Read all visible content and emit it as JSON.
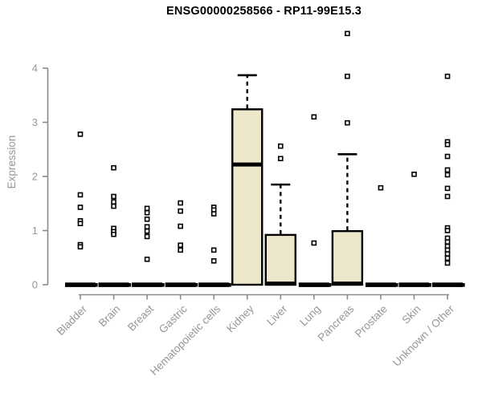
{
  "title": "ENSG00000258566 - RP11-99E15.3",
  "chart_data": {
    "type": "boxplot",
    "title": "ENSG00000258566 - RP11-99E15.3",
    "xlabel": "",
    "ylabel": "Expression",
    "yticks": [
      0,
      1,
      2,
      3,
      4
    ],
    "ylim": [
      0,
      4.75
    ],
    "grid": false,
    "legend": "none",
    "point_glyph": "open-square",
    "colors": {
      "box_fill": "#EDE7CB",
      "box_stroke": "#000000",
      "axis": "#8A8A8A",
      "tick_text": "#969696",
      "title_text": "#000000",
      "background": "#FFFFFF"
    },
    "categories": [
      "Bladder",
      "Brain",
      "Breast",
      "Gastric",
      "Hematopoietic cells",
      "Kidney",
      "Liver",
      "Lung",
      "Pancreas",
      "Prostate",
      "Skin",
      "Unknown / Other"
    ],
    "series": [
      {
        "category": "Bladder",
        "q1": 0,
        "median": 0,
        "q3": 0,
        "whisker_low": 0,
        "whisker_high": 0,
        "outliers": [
          2.78,
          1.66,
          1.43,
          1.18,
          1.13,
          0.74,
          0.7
        ]
      },
      {
        "category": "Brain",
        "q1": 0,
        "median": 0,
        "q3": 0,
        "whisker_low": 0,
        "whisker_high": 0,
        "outliers": [
          2.16,
          1.63,
          1.53,
          1.45,
          1.04,
          0.98,
          0.93
        ]
      },
      {
        "category": "Breast",
        "q1": 0,
        "median": 0,
        "q3": 0,
        "whisker_low": 0,
        "whisker_high": 0,
        "outliers": [
          1.41,
          1.33,
          1.21,
          1.07,
          0.99,
          0.89,
          0.47
        ]
      },
      {
        "category": "Gastric",
        "q1": 0,
        "median": 0,
        "q3": 0,
        "whisker_low": 0,
        "whisker_high": 0,
        "outliers": [
          1.51,
          1.36,
          1.08,
          0.73,
          0.64
        ]
      },
      {
        "category": "Hematopoietic cells",
        "q1": 0,
        "median": 0,
        "q3": 0,
        "whisker_low": 0,
        "whisker_high": 0,
        "outliers": [
          1.43,
          1.38,
          1.31,
          0.64,
          0.44
        ]
      },
      {
        "category": "Kidney",
        "q1": 0,
        "median": 2.22,
        "q3": 3.24,
        "whisker_low": 0,
        "whisker_high": 3.87,
        "outliers": []
      },
      {
        "category": "Liver",
        "q1": 0,
        "median": 0.02,
        "q3": 0.92,
        "whisker_low": 0,
        "whisker_high": 1.85,
        "outliers": [
          2.56,
          2.33
        ]
      },
      {
        "category": "Lung",
        "q1": 0,
        "median": 0,
        "q3": 0,
        "whisker_low": 0,
        "whisker_high": 0,
        "outliers": [
          3.1,
          0.77
        ]
      },
      {
        "category": "Pancreas",
        "q1": 0,
        "median": 0.02,
        "q3": 0.99,
        "whisker_low": 0,
        "whisker_high": 2.41,
        "outliers": [
          4.64,
          3.85,
          2.99
        ]
      },
      {
        "category": "Prostate",
        "q1": 0,
        "median": 0,
        "q3": 0,
        "whisker_low": 0,
        "whisker_high": 0,
        "outliers": [
          1.79
        ]
      },
      {
        "category": "Skin",
        "q1": 0,
        "median": 0,
        "q3": 0,
        "whisker_low": 0,
        "whisker_high": 0,
        "outliers": [
          2.04
        ]
      },
      {
        "category": "Unknown / Other",
        "q1": 0,
        "median": 0,
        "q3": 0,
        "whisker_low": 0,
        "whisker_high": 0,
        "outliers": [
          3.85,
          2.64,
          2.59,
          2.37,
          2.12,
          2.03,
          1.78,
          1.63,
          1.05,
          1.0,
          0.86,
          0.79,
          0.71,
          0.64,
          0.57,
          0.49,
          0.4
        ]
      }
    ]
  }
}
